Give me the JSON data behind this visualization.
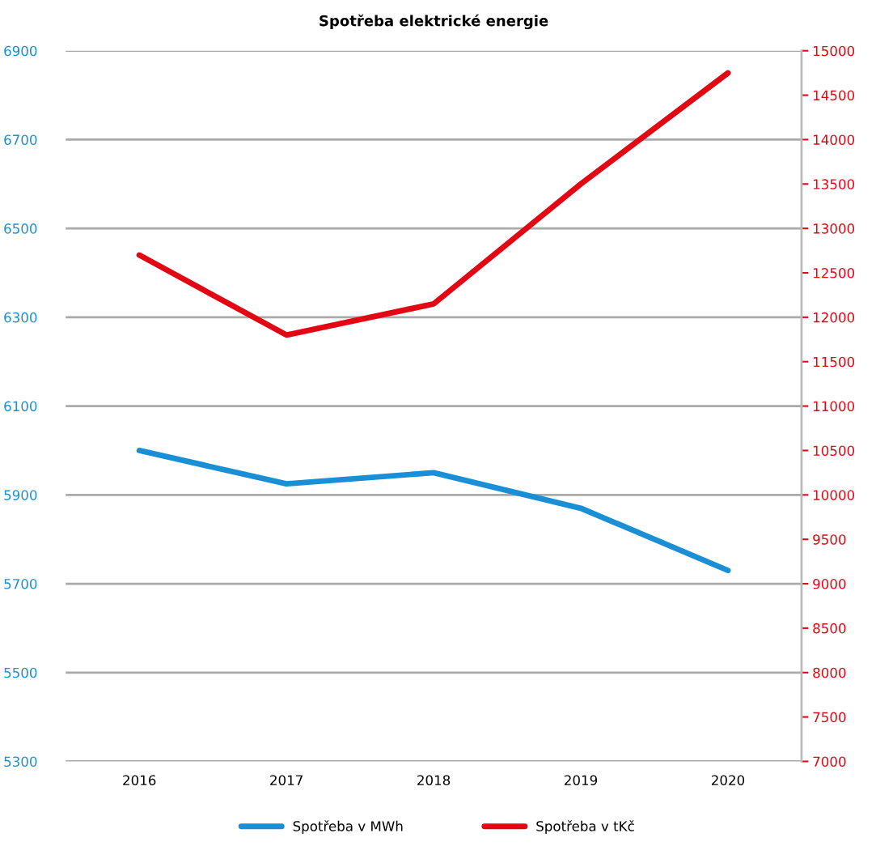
{
  "chart_data": {
    "type": "line",
    "title": "Spotřeba elektrické energie",
    "categories": [
      "2016",
      "2017",
      "2018",
      "2019",
      "2020"
    ],
    "series": [
      {
        "name": "Spotřeba v MWh",
        "color": "#1a8fd6",
        "values": [
          6000,
          5925,
          5950,
          5870,
          5730
        ]
      },
      {
        "name": "Spotřeba v tKč",
        "color": "#e30613",
        "axis": "y2",
        "values": [
          12700,
          11800,
          12150,
          13500,
          14750
        ]
      }
    ],
    "ylim": [
      5300,
      6900
    ],
    "yticks": [
      5300,
      5500,
      5700,
      5900,
      6100,
      6300,
      6500,
      6700,
      6900
    ],
    "y2lim": [
      7000,
      15000
    ],
    "y2ticks": [
      7000,
      7500,
      8000,
      8500,
      9000,
      9500,
      10000,
      10500,
      11000,
      11500,
      12000,
      12500,
      13000,
      13500,
      14000,
      14500,
      15000
    ],
    "grid": "y",
    "legend": "bottom",
    "marker": "none",
    "line_style": "solid"
  }
}
